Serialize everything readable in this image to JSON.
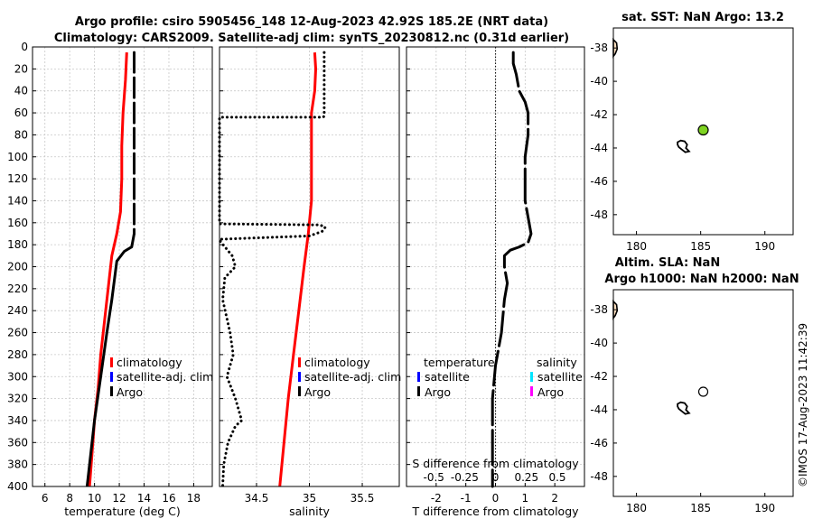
{
  "header": {
    "title_line1": "Argo profile: csiro 5905456_148 12-Aug-2023 42.92S 185.2E (NRT data)",
    "title_line2": "Climatology: CARS2009. Satellite-adj clim: synTS_20230812.nc (0.31d earlier)"
  },
  "colors": {
    "climatology": "#ff0000",
    "satellite_adj": "#0000ff",
    "argo": "#000000",
    "salinity_satellite": "#00e5ff",
    "salinity_argo": "#ff00ff",
    "float_marker": "#7ed321",
    "land_fill": "#ffe0c0"
  },
  "chart_data": [
    {
      "type": "line",
      "name": "temperature",
      "xlabel": "temperature (deg C)",
      "xlim": [
        5,
        19.5
      ],
      "xticks": [
        6,
        8,
        10,
        12,
        14,
        16,
        18
      ],
      "xtick_labels": [
        "6",
        "8",
        "10",
        "12",
        "14",
        "16",
        "18"
      ],
      "ylim": [
        0,
        400
      ],
      "yticks": [
        0,
        20,
        40,
        60,
        80,
        100,
        120,
        140,
        160,
        180,
        200,
        220,
        240,
        260,
        280,
        300,
        320,
        340,
        360,
        380,
        400
      ],
      "ytick_labels": [
        "0",
        "20",
        "40",
        "60",
        "80",
        "100",
        "120",
        "140",
        "160",
        "180",
        "200",
        "220",
        "240",
        "260",
        "280",
        "300",
        "320",
        "340",
        "360",
        "380",
        "400"
      ],
      "legend": [
        "climatology",
        "satellite-adj. clim",
        "Argo"
      ],
      "series": [
        {
          "name": "climatology",
          "depth": [
            5,
            30,
            60,
            90,
            120,
            150,
            170,
            190,
            220,
            250,
            280,
            310,
            340,
            370,
            400
          ],
          "values": [
            12.6,
            12.5,
            12.3,
            12.2,
            12.2,
            12.1,
            11.8,
            11.4,
            11.1,
            10.8,
            10.5,
            10.3,
            10.0,
            9.8,
            9.6
          ]
        },
        {
          "name": "Argo",
          "depth": [
            5,
            170,
            182,
            186,
            195,
            230,
            260,
            300,
            340,
            370,
            400
          ],
          "values": [
            13.2,
            13.2,
            13.0,
            12.4,
            11.8,
            11.4,
            11.0,
            10.5,
            10.0,
            9.7,
            9.4
          ]
        }
      ]
    },
    {
      "type": "line",
      "name": "salinity",
      "xlabel": "salinity",
      "xlim": [
        34.15,
        35.85
      ],
      "xticks": [
        34.5,
        35,
        35.5
      ],
      "xtick_labels": [
        "34.5",
        "35",
        "35.5"
      ],
      "ylim": [
        0,
        400
      ],
      "legend": [
        "climatology",
        "satellite-adj. clim",
        "Argo"
      ],
      "series": [
        {
          "name": "climatology",
          "depth": [
            5,
            20,
            40,
            60,
            100,
            140,
            170,
            200,
            240,
            280,
            320,
            360,
            400
          ],
          "values": [
            35.05,
            35.06,
            35.05,
            35.02,
            35.02,
            35.02,
            34.99,
            34.95,
            34.9,
            34.85,
            34.8,
            34.76,
            34.72
          ]
        },
        {
          "name": "Argo",
          "depth": [
            5,
            63,
            64,
            64,
            161,
            162,
            164,
            168,
            172,
            175,
            176,
            190,
            200,
            210,
            230,
            260,
            280,
            300,
            320,
            340,
            345,
            360,
            380,
            400
          ],
          "values": [
            35.14,
            35.14,
            35.13,
            34.15,
            34.15,
            35.1,
            35.15,
            35.12,
            35.0,
            34.15,
            34.15,
            34.27,
            34.3,
            34.2,
            34.18,
            34.25,
            34.28,
            34.22,
            34.3,
            34.36,
            34.3,
            34.23,
            34.19,
            34.18
          ]
        }
      ]
    },
    {
      "type": "line",
      "name": "difference_from_climatology",
      "xlabel": "T difference from climatology",
      "top_label": "S difference from climatology",
      "xlim": [
        -3,
        3
      ],
      "xticks": [
        -2,
        -1,
        0,
        1,
        2
      ],
      "xtick_labels": [
        "-2",
        "-1",
        "0",
        "1",
        "2"
      ],
      "top_ticks": [
        -0.5,
        -0.25,
        0,
        0.25,
        0.5
      ],
      "top_tick_labels": [
        "-0.5",
        "-0.25",
        "0",
        "0.25",
        "0.5"
      ],
      "ylim": [
        0,
        400
      ],
      "legend_headers": [
        "temperature",
        "salinity"
      ],
      "legend_left": [
        "satellite",
        "Argo"
      ],
      "legend_right": [
        "satellite",
        "Argo"
      ],
      "series": [
        {
          "name": "T difference Argo",
          "depth": [
            5,
            15,
            25,
            40,
            50,
            60,
            80,
            100,
            120,
            140,
            155,
            170,
            178,
            182,
            185,
            190,
            200,
            215,
            230,
            260,
            290,
            320,
            360,
            400
          ],
          "values": [
            0.6,
            0.6,
            0.7,
            0.8,
            1.0,
            1.1,
            1.1,
            1.0,
            1.0,
            1.0,
            1.1,
            1.2,
            1.1,
            0.8,
            0.5,
            0.3,
            0.3,
            0.4,
            0.3,
            0.2,
            0.0,
            -0.1,
            -0.1,
            -0.1
          ]
        }
      ]
    },
    {
      "type": "scatter",
      "name": "sst_map",
      "title": "sat. SST: NaN Argo: 13.2",
      "xlim": [
        178.2,
        192.2
      ],
      "ylim": [
        -49.2,
        -36.8
      ],
      "xticks": [
        180,
        185,
        190
      ],
      "xtick_labels": [
        "180",
        "185",
        "190"
      ],
      "yticks": [
        -48,
        -46,
        -44,
        -42,
        -40,
        -38
      ],
      "ytick_labels": [
        "-48",
        "-46",
        "-44",
        "-42",
        "-40",
        "-38"
      ],
      "points": [
        {
          "x": 185.2,
          "y": -42.92
        }
      ]
    },
    {
      "type": "scatter",
      "name": "sla_map",
      "title_line1": "Altim. SLA: NaN",
      "title_line2": "Argo h1000: NaN h2000: NaN",
      "xlim": [
        178.2,
        192.2
      ],
      "ylim": [
        -49.2,
        -36.8
      ],
      "xticks": [
        180,
        185,
        190
      ],
      "xtick_labels": [
        "180",
        "185",
        "190"
      ],
      "yticks": [
        -48,
        -46,
        -44,
        -42,
        -40,
        -38
      ],
      "ytick_labels": [
        "-48",
        "-46",
        "-44",
        "-42",
        "-40",
        "-38"
      ],
      "points": [
        {
          "x": 185.2,
          "y": -42.92
        }
      ]
    }
  ],
  "footer": {
    "credit": "©IMOS 17-Aug-2023 11:42:39"
  }
}
